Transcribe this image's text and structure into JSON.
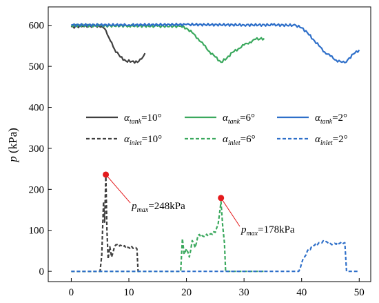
{
  "chart_data": {
    "type": "line",
    "ylabel": "p (kPa)",
    "xlabel": "",
    "xlim": [
      -4,
      52
    ],
    "ylim": [
      -25,
      645
    ],
    "xticks": [
      0,
      10,
      20,
      30,
      40,
      50
    ],
    "yticks": [
      0,
      100,
      200,
      300,
      400,
      500,
      600
    ],
    "grid": false,
    "legend_position": "center",
    "series": [
      {
        "name": "α_tank=10°",
        "symbol": "α",
        "sub": "tank",
        "value": "=10°",
        "color": "#3f3f3f",
        "dash": "solid",
        "x": [
          0,
          2,
          4,
          5.3,
          6,
          6.8,
          7.5,
          8.5,
          9.5,
          10.5,
          11.5,
          12.2,
          12.8
        ],
        "y": [
          596,
          598,
          599,
          597,
          588,
          562,
          542,
          523,
          513,
          512,
          510,
          518,
          532
        ]
      },
      {
        "name": "α_inlet=10°",
        "symbol": "α",
        "sub": "inlet",
        "value": "=10°",
        "color": "#3f3f3f",
        "dash": "dashed",
        "x": [
          0,
          5,
          5.3,
          5.6,
          5.8,
          6.0,
          6.2,
          6.4,
          6.7,
          7.0,
          7.5,
          8,
          9,
          10,
          11,
          11.4,
          11.6,
          12
        ],
        "y": [
          0,
          0,
          40,
          170,
          120,
          238,
          100,
          30,
          60,
          35,
          60,
          65,
          60,
          58,
          57,
          55,
          0,
          0
        ]
      },
      {
        "name": "α_tank=6°",
        "symbol": "α",
        "sub": "tank",
        "value": "=6°",
        "color": "#3aa85d",
        "dash": "solid",
        "x": [
          0,
          5,
          10,
          15,
          19,
          20,
          21,
          22,
          23,
          24,
          25,
          26,
          27,
          28,
          29,
          30,
          31,
          32,
          33.5
        ],
        "y": [
          600,
          599,
          599,
          598,
          598,
          593,
          582,
          568,
          552,
          536,
          523,
          510,
          520,
          534,
          543,
          552,
          559,
          566,
          568
        ]
      },
      {
        "name": "α_inlet=6°",
        "symbol": "α",
        "sub": "inlet",
        "value": "=6°",
        "color": "#3aa85d",
        "dash": "dashed",
        "x": [
          0,
          19,
          19.3,
          19.6,
          20,
          20.5,
          21,
          21.5,
          22,
          23,
          24,
          25,
          25.5,
          26,
          26.3,
          26.6,
          26.8,
          27,
          30,
          33.5
        ],
        "y": [
          0,
          0,
          80,
          42,
          55,
          35,
          75,
          58,
          88,
          85,
          90,
          95,
          115,
          170,
          110,
          70,
          0,
          0,
          0,
          0
        ]
      },
      {
        "name": "α_tank=2°",
        "symbol": "α",
        "sub": "tank",
        "value": "=2°",
        "color": "#2e6fc9",
        "dash": "solid",
        "x": [
          0,
          10,
          20,
          30,
          35,
          39,
          40,
          41,
          42,
          43,
          44,
          45,
          46,
          47,
          47.5,
          48,
          49,
          50
        ],
        "y": [
          601,
          601,
          602,
          601,
          601,
          600,
          594,
          582,
          566,
          550,
          535,
          525,
          515,
          510,
          509,
          516,
          530,
          540
        ]
      },
      {
        "name": "α_inlet=2°",
        "symbol": "α",
        "sub": "inlet",
        "value": "=2°",
        "color": "#2e6fc9",
        "dash": "dashed",
        "x": [
          0,
          39.5,
          40,
          40.5,
          41,
          42,
          43,
          44,
          45,
          46,
          47,
          47.5,
          47.8,
          48,
          50
        ],
        "y": [
          0,
          0,
          20,
          35,
          50,
          62,
          70,
          72,
          68,
          66,
          72,
          70,
          0,
          0,
          0
        ]
      }
    ],
    "annotations": [
      {
        "symbol": "p",
        "sub": "max",
        "value": "=248kPa",
        "point": {
          "x": 6,
          "y": 236
        },
        "label_anchor": {
          "x": 10.5,
          "y": 160
        }
      },
      {
        "symbol": "p",
        "sub": "max",
        "value": "=178kPa",
        "point": {
          "x": 26,
          "y": 179
        },
        "label_anchor": {
          "x": 29.5,
          "y": 103
        }
      }
    ]
  }
}
